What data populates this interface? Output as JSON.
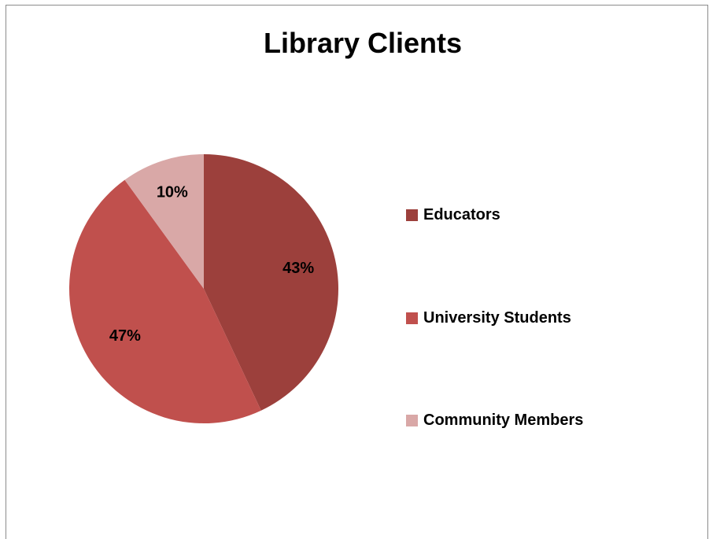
{
  "chart_data": {
    "type": "pie",
    "title": "Library Clients",
    "categories": [
      "Educators",
      "University Students",
      "Community Members"
    ],
    "values": [
      43,
      47,
      10
    ],
    "labels": [
      "43%",
      "47%",
      "10%"
    ],
    "colors": [
      "#9C403C",
      "#C0504D",
      "#D9A8A7"
    ],
    "legend_position": "right"
  }
}
